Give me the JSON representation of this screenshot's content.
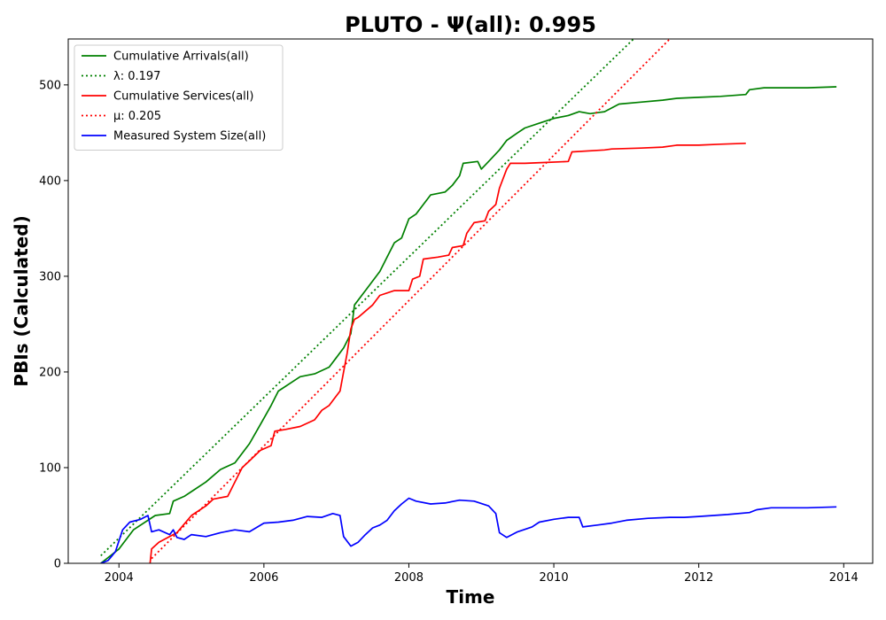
{
  "chart_data": {
    "type": "line",
    "title": "PLUTO -  Ψ(all): 0.995",
    "xlabel": "Time",
    "ylabel": "PBIs (Calculated)",
    "xlim": [
      2003.3,
      2014.4
    ],
    "ylim": [
      0,
      548
    ],
    "x_ticks": [
      2004,
      2006,
      2008,
      2010,
      2012,
      2014
    ],
    "y_ticks": [
      0,
      100,
      200,
      300,
      400,
      500
    ],
    "x_tick_labels": [
      "2004",
      "2006",
      "2008",
      "2010",
      "2012",
      "2014"
    ],
    "y_tick_labels": [
      "0",
      "100",
      "200",
      "300",
      "400",
      "500"
    ],
    "legend_position": "upper-left",
    "series": [
      {
        "name": "Cumulative Arrivals(all)",
        "color": "#008000",
        "style": "solid",
        "points": [
          [
            2003.75,
            0
          ],
          [
            2004.0,
            15
          ],
          [
            2004.2,
            35
          ],
          [
            2004.5,
            50
          ],
          [
            2004.7,
            52
          ],
          [
            2004.75,
            65
          ],
          [
            2004.9,
            70
          ],
          [
            2005.0,
            75
          ],
          [
            2005.2,
            85
          ],
          [
            2005.4,
            98
          ],
          [
            2005.6,
            105
          ],
          [
            2005.8,
            125
          ],
          [
            2005.95,
            145
          ],
          [
            2006.1,
            165
          ],
          [
            2006.2,
            180
          ],
          [
            2006.4,
            190
          ],
          [
            2006.5,
            195
          ],
          [
            2006.7,
            198
          ],
          [
            2006.9,
            205
          ],
          [
            2007.0,
            215
          ],
          [
            2007.1,
            225
          ],
          [
            2007.2,
            240
          ],
          [
            2007.25,
            270
          ],
          [
            2007.4,
            285
          ],
          [
            2007.6,
            305
          ],
          [
            2007.7,
            320
          ],
          [
            2007.8,
            335
          ],
          [
            2007.9,
            340
          ],
          [
            2008.0,
            360
          ],
          [
            2008.1,
            365
          ],
          [
            2008.2,
            375
          ],
          [
            2008.3,
            385
          ],
          [
            2008.5,
            388
          ],
          [
            2008.6,
            395
          ],
          [
            2008.7,
            405
          ],
          [
            2008.75,
            418
          ],
          [
            2008.95,
            420
          ],
          [
            2009.0,
            412
          ],
          [
            2009.1,
            420
          ],
          [
            2009.25,
            432
          ],
          [
            2009.35,
            442
          ],
          [
            2009.5,
            450
          ],
          [
            2009.6,
            455
          ],
          [
            2009.8,
            460
          ],
          [
            2010.0,
            465
          ],
          [
            2010.2,
            468
          ],
          [
            2010.35,
            472
          ],
          [
            2010.5,
            470
          ],
          [
            2010.7,
            472
          ],
          [
            2010.9,
            480
          ],
          [
            2011.2,
            482
          ],
          [
            2011.5,
            484
          ],
          [
            2011.7,
            486
          ],
          [
            2012.0,
            487
          ],
          [
            2012.3,
            488
          ],
          [
            2012.65,
            490
          ],
          [
            2012.7,
            495
          ],
          [
            2012.9,
            497
          ],
          [
            2013.2,
            497
          ],
          [
            2013.5,
            497
          ],
          [
            2013.9,
            498
          ]
        ]
      },
      {
        "name": "λ: 0.197",
        "color": "#008000",
        "style": "dotted",
        "points": [
          [
            2003.75,
            8
          ],
          [
            2011.1,
            548
          ]
        ]
      },
      {
        "name": "Cumulative Services(all)",
        "color": "#ff0000",
        "style": "solid",
        "points": [
          [
            2004.43,
            0
          ],
          [
            2004.45,
            15
          ],
          [
            2004.55,
            22
          ],
          [
            2004.8,
            32
          ],
          [
            2005.0,
            50
          ],
          [
            2005.2,
            60
          ],
          [
            2005.3,
            67
          ],
          [
            2005.5,
            70
          ],
          [
            2005.6,
            85
          ],
          [
            2005.7,
            100
          ],
          [
            2005.8,
            107
          ],
          [
            2005.95,
            118
          ],
          [
            2006.1,
            123
          ],
          [
            2006.15,
            138
          ],
          [
            2006.3,
            140
          ],
          [
            2006.5,
            143
          ],
          [
            2006.7,
            150
          ],
          [
            2006.8,
            160
          ],
          [
            2006.9,
            165
          ],
          [
            2007.0,
            175
          ],
          [
            2007.05,
            180
          ],
          [
            2007.1,
            200
          ],
          [
            2007.15,
            220
          ],
          [
            2007.2,
            245
          ],
          [
            2007.25,
            255
          ],
          [
            2007.3,
            257
          ],
          [
            2007.5,
            270
          ],
          [
            2007.6,
            280
          ],
          [
            2007.8,
            285
          ],
          [
            2008.0,
            285
          ],
          [
            2008.05,
            297
          ],
          [
            2008.15,
            300
          ],
          [
            2008.2,
            318
          ],
          [
            2008.4,
            320
          ],
          [
            2008.55,
            322
          ],
          [
            2008.6,
            330
          ],
          [
            2008.75,
            332
          ],
          [
            2008.8,
            345
          ],
          [
            2008.9,
            356
          ],
          [
            2009.05,
            358
          ],
          [
            2009.1,
            368
          ],
          [
            2009.2,
            375
          ],
          [
            2009.25,
            392
          ],
          [
            2009.35,
            412
          ],
          [
            2009.4,
            418
          ],
          [
            2009.6,
            418
          ],
          [
            2009.9,
            419
          ],
          [
            2010.2,
            420
          ],
          [
            2010.25,
            430
          ],
          [
            2010.7,
            432
          ],
          [
            2010.8,
            433
          ],
          [
            2011.2,
            434
          ],
          [
            2011.5,
            435
          ],
          [
            2011.7,
            437
          ],
          [
            2012.0,
            437
          ],
          [
            2012.3,
            438
          ],
          [
            2012.65,
            439
          ]
        ]
      },
      {
        "name": "μ: 0.205",
        "color": "#ff0000",
        "style": "dotted",
        "points": [
          [
            2004.45,
            5
          ],
          [
            2011.6,
            548
          ]
        ]
      },
      {
        "name": "Measured System Size(all)",
        "color": "#0000ff",
        "style": "solid",
        "points": [
          [
            2003.75,
            0
          ],
          [
            2003.85,
            3
          ],
          [
            2003.95,
            12
          ],
          [
            2004.05,
            35
          ],
          [
            2004.15,
            43
          ],
          [
            2004.3,
            46
          ],
          [
            2004.4,
            50
          ],
          [
            2004.45,
            33
          ],
          [
            2004.55,
            35
          ],
          [
            2004.7,
            30
          ],
          [
            2004.75,
            35
          ],
          [
            2004.8,
            27
          ],
          [
            2004.9,
            25
          ],
          [
            2005.0,
            30
          ],
          [
            2005.2,
            28
          ],
          [
            2005.4,
            32
          ],
          [
            2005.6,
            35
          ],
          [
            2005.8,
            33
          ],
          [
            2006.0,
            42
          ],
          [
            2006.2,
            43
          ],
          [
            2006.4,
            45
          ],
          [
            2006.6,
            49
          ],
          [
            2006.8,
            48
          ],
          [
            2006.95,
            52
          ],
          [
            2007.05,
            50
          ],
          [
            2007.1,
            28
          ],
          [
            2007.2,
            18
          ],
          [
            2007.3,
            22
          ],
          [
            2007.4,
            30
          ],
          [
            2007.5,
            37
          ],
          [
            2007.6,
            40
          ],
          [
            2007.7,
            45
          ],
          [
            2007.8,
            55
          ],
          [
            2007.9,
            62
          ],
          [
            2008.0,
            68
          ],
          [
            2008.1,
            65
          ],
          [
            2008.3,
            62
          ],
          [
            2008.5,
            63
          ],
          [
            2008.7,
            66
          ],
          [
            2008.9,
            65
          ],
          [
            2009.1,
            60
          ],
          [
            2009.2,
            52
          ],
          [
            2009.25,
            32
          ],
          [
            2009.35,
            27
          ],
          [
            2009.5,
            33
          ],
          [
            2009.7,
            38
          ],
          [
            2009.8,
            43
          ],
          [
            2010.0,
            46
          ],
          [
            2010.2,
            48
          ],
          [
            2010.35,
            48
          ],
          [
            2010.4,
            38
          ],
          [
            2010.6,
            40
          ],
          [
            2010.8,
            42
          ],
          [
            2011.0,
            45
          ],
          [
            2011.3,
            47
          ],
          [
            2011.6,
            48
          ],
          [
            2011.8,
            48
          ],
          [
            2012.0,
            49
          ],
          [
            2012.4,
            51
          ],
          [
            2012.7,
            53
          ],
          [
            2012.8,
            56
          ],
          [
            2013.0,
            58
          ],
          [
            2013.5,
            58
          ],
          [
            2013.9,
            59
          ]
        ]
      }
    ]
  }
}
